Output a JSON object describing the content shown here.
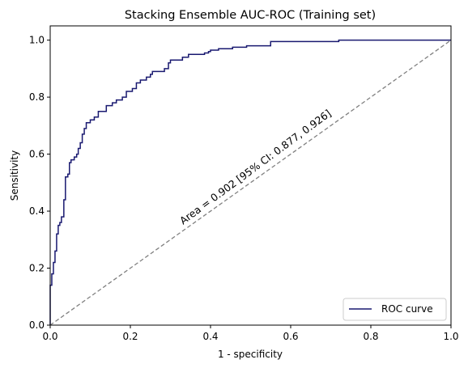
{
  "chart_data": {
    "type": "line",
    "title": "Stacking Ensemble AUC-ROC (Training set)",
    "xlabel": "1 - specificity",
    "ylabel": "Sensitivity",
    "xlim": [
      0.0,
      1.0
    ],
    "ylim": [
      0.0,
      1.05
    ],
    "x_ticks": [
      "0.0",
      "0.2",
      "0.4",
      "0.6",
      "0.8",
      "1.0"
    ],
    "y_ticks": [
      "0.0",
      "0.2",
      "0.4",
      "0.6",
      "0.8",
      "1.0"
    ],
    "grid": false,
    "legend_position": "lower-right",
    "annotation": "Area = 0.902 [95% CI: 0.877, 0.926]",
    "series": [
      {
        "name": "ROC curve",
        "color": "#191970",
        "style": "step",
        "points": [
          [
            0.0,
            0.0
          ],
          [
            0.0,
            0.14
          ],
          [
            0.004,
            0.14
          ],
          [
            0.004,
            0.18
          ],
          [
            0.008,
            0.18
          ],
          [
            0.008,
            0.22
          ],
          [
            0.012,
            0.22
          ],
          [
            0.012,
            0.26
          ],
          [
            0.016,
            0.26
          ],
          [
            0.016,
            0.32
          ],
          [
            0.02,
            0.32
          ],
          [
            0.02,
            0.35
          ],
          [
            0.024,
            0.35
          ],
          [
            0.024,
            0.36
          ],
          [
            0.028,
            0.36
          ],
          [
            0.028,
            0.38
          ],
          [
            0.034,
            0.38
          ],
          [
            0.034,
            0.44
          ],
          [
            0.038,
            0.44
          ],
          [
            0.038,
            0.52
          ],
          [
            0.044,
            0.52
          ],
          [
            0.044,
            0.53
          ],
          [
            0.048,
            0.53
          ],
          [
            0.048,
            0.57
          ],
          [
            0.052,
            0.57
          ],
          [
            0.052,
            0.58
          ],
          [
            0.06,
            0.58
          ],
          [
            0.06,
            0.59
          ],
          [
            0.066,
            0.59
          ],
          [
            0.066,
            0.6
          ],
          [
            0.07,
            0.6
          ],
          [
            0.07,
            0.62
          ],
          [
            0.075,
            0.62
          ],
          [
            0.075,
            0.64
          ],
          [
            0.08,
            0.64
          ],
          [
            0.08,
            0.67
          ],
          [
            0.085,
            0.67
          ],
          [
            0.085,
            0.69
          ],
          [
            0.09,
            0.69
          ],
          [
            0.09,
            0.71
          ],
          [
            0.1,
            0.71
          ],
          [
            0.1,
            0.72
          ],
          [
            0.11,
            0.72
          ],
          [
            0.11,
            0.73
          ],
          [
            0.12,
            0.73
          ],
          [
            0.12,
            0.75
          ],
          [
            0.14,
            0.75
          ],
          [
            0.14,
            0.77
          ],
          [
            0.155,
            0.77
          ],
          [
            0.155,
            0.78
          ],
          [
            0.165,
            0.78
          ],
          [
            0.165,
            0.79
          ],
          [
            0.18,
            0.79
          ],
          [
            0.18,
            0.8
          ],
          [
            0.19,
            0.8
          ],
          [
            0.19,
            0.82
          ],
          [
            0.205,
            0.82
          ],
          [
            0.205,
            0.83
          ],
          [
            0.215,
            0.83
          ],
          [
            0.215,
            0.85
          ],
          [
            0.225,
            0.85
          ],
          [
            0.225,
            0.86
          ],
          [
            0.24,
            0.86
          ],
          [
            0.24,
            0.87
          ],
          [
            0.25,
            0.87
          ],
          [
            0.25,
            0.88
          ],
          [
            0.255,
            0.88
          ],
          [
            0.255,
            0.89
          ],
          [
            0.285,
            0.89
          ],
          [
            0.285,
            0.9
          ],
          [
            0.295,
            0.9
          ],
          [
            0.295,
            0.92
          ],
          [
            0.3,
            0.92
          ],
          [
            0.3,
            0.93
          ],
          [
            0.33,
            0.93
          ],
          [
            0.33,
            0.94
          ],
          [
            0.345,
            0.94
          ],
          [
            0.345,
            0.95
          ],
          [
            0.385,
            0.95
          ],
          [
            0.385,
            0.955
          ],
          [
            0.395,
            0.955
          ],
          [
            0.395,
            0.96
          ],
          [
            0.4,
            0.96
          ],
          [
            0.4,
            0.965
          ],
          [
            0.42,
            0.965
          ],
          [
            0.42,
            0.97
          ],
          [
            0.455,
            0.97
          ],
          [
            0.455,
            0.975
          ],
          [
            0.49,
            0.975
          ],
          [
            0.49,
            0.98
          ],
          [
            0.55,
            0.98
          ],
          [
            0.55,
            0.995
          ],
          [
            0.72,
            0.995
          ],
          [
            0.72,
            1.0
          ],
          [
            1.0,
            1.0
          ]
        ]
      },
      {
        "name": "",
        "color": "#808080",
        "style": "dashed",
        "points": [
          [
            0.0,
            0.0
          ],
          [
            1.0,
            1.0
          ]
        ]
      }
    ]
  }
}
